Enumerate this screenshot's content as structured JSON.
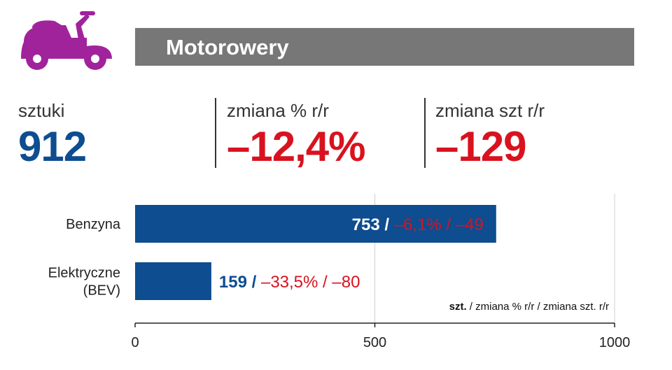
{
  "header": {
    "title": "Motorowery",
    "icon": "scooter-icon",
    "icon_color": "#a0239c",
    "bar_color": "#777777"
  },
  "kpis": [
    {
      "label": "sztuki",
      "value": "912",
      "color": "#0d4d90"
    },
    {
      "label": "zmiana % r/r",
      "value": "–12,4%",
      "color": "#d9121f"
    },
    {
      "label": "zmiana szt r/r",
      "value": "–129",
      "color": "#d9121f"
    }
  ],
  "chart_data": {
    "type": "bar",
    "orientation": "horizontal",
    "categories": [
      "Benzyna",
      "Elektryczne (BEV)"
    ],
    "category_lines": [
      [
        "Benzyna"
      ],
      [
        "Elektryczne",
        "(BEV)"
      ]
    ],
    "values": [
      753,
      159
    ],
    "pct_change": [
      "–6,1%",
      "–33,5%"
    ],
    "unit_change": [
      "–49",
      "–80"
    ],
    "xlim": [
      0,
      1000
    ],
    "xticks": [
      0,
      500,
      1000
    ],
    "grid": true,
    "legend_note": {
      "bold": "szt.",
      "rest": " / zmiana % r/r / zmiana szt. r/r"
    },
    "bar_color": "#0d4d90",
    "negative_color": "#d9121f"
  }
}
